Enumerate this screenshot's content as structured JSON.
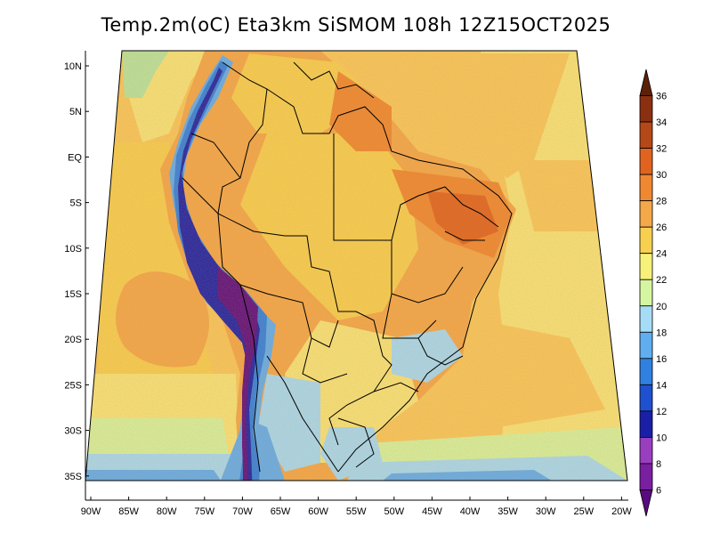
{
  "title": "Temp.2m(oC) Eta3km SiSMOM 108h 12Z15OCT2025",
  "lat_labels": [
    "10N",
    "5N",
    "EQ",
    "5S",
    "10S",
    "15S",
    "20S",
    "25S",
    "30S",
    "35S"
  ],
  "lon_labels": [
    "90W",
    "85W",
    "80W",
    "75W",
    "70W",
    "65W",
    "60W",
    "55W",
    "50W",
    "45W",
    "40W",
    "35W",
    "30W",
    "25W",
    "20W"
  ],
  "colorbar": {
    "unit": "oC",
    "levels": [
      "6",
      "8",
      "10",
      "12",
      "14",
      "16",
      "18",
      "20",
      "22",
      "24",
      "26",
      "28",
      "30",
      "32",
      "34",
      "36"
    ],
    "colors": [
      "#5a0a80",
      "#7a1fa0",
      "#9a3ec0",
      "#1a1fa8",
      "#1f50d0",
      "#2f80e0",
      "#60aef0",
      "#a6dcf5",
      "#d6f5a0",
      "#f7f07a",
      "#f8d050",
      "#f4a84a",
      "#ef8830",
      "#e06420",
      "#b54818",
      "#8a3010",
      "#5c200a"
    ]
  },
  "colors": {
    "ocean_warm": "#f9c95c",
    "ocean_mild": "#f8e67a",
    "land_hot": "#f4a84a",
    "border": "#000000"
  }
}
